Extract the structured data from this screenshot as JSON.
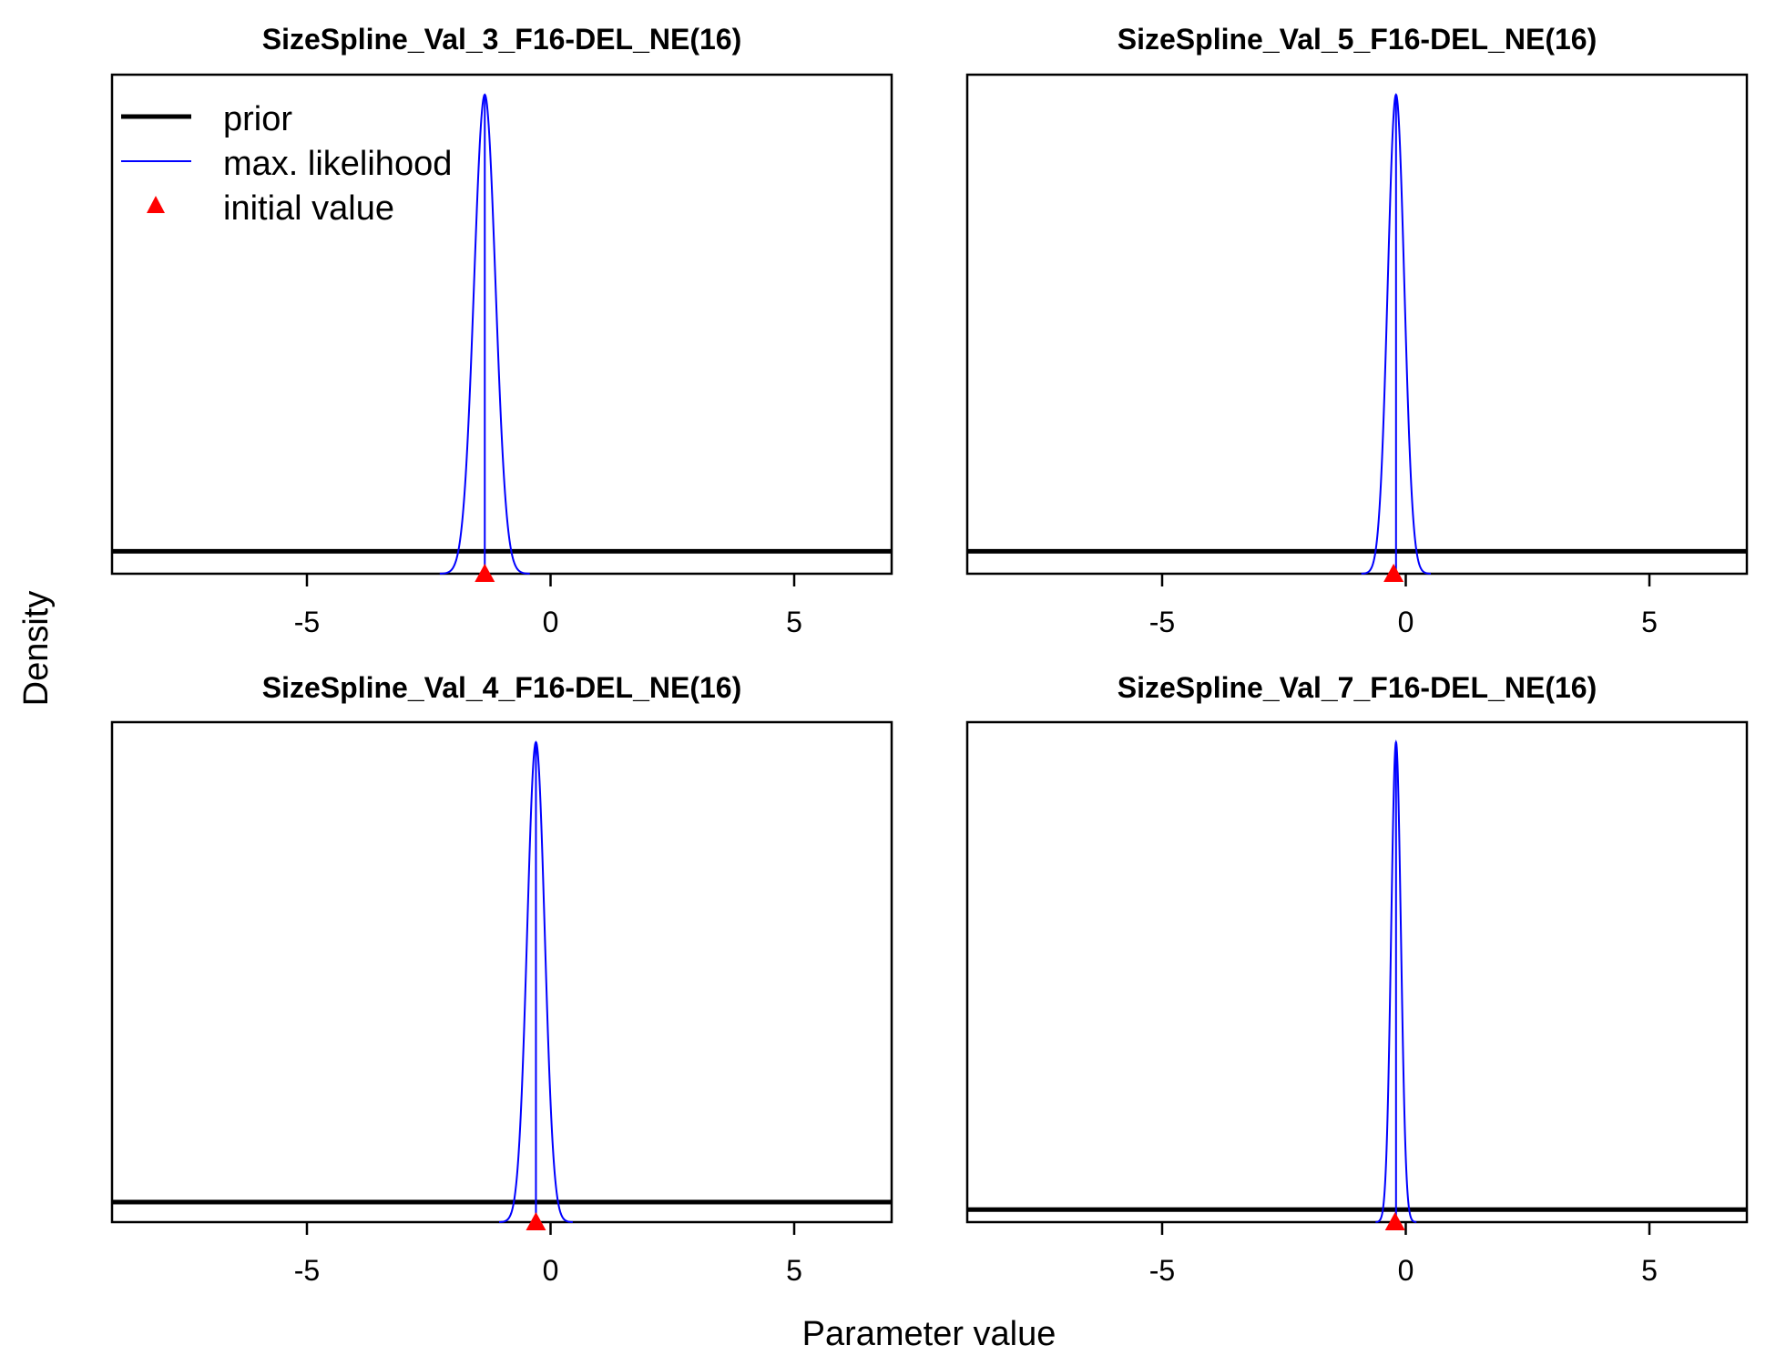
{
  "figure": {
    "ylabel": "Density",
    "xlabel": "Parameter value"
  },
  "legend": {
    "placement": "top-left of first panel",
    "entries": [
      {
        "label": "prior",
        "color": "#000000",
        "kind": "thick-line"
      },
      {
        "label": "max. likelihood",
        "color": "#0000ff",
        "kind": "thin-line"
      },
      {
        "label": "initial value",
        "color": "#ff0000",
        "kind": "triangle"
      }
    ]
  },
  "chart_data": [
    {
      "type": "line",
      "title": "SizeSpline_Val_3_F16-DEL_NE(16)",
      "xlim": [
        -9,
        7
      ],
      "xticks": [
        -5,
        0,
        5
      ],
      "prior_level": 0.045,
      "ml_mean": -1.35,
      "ml_sd": 0.22,
      "initial_value": -1.35
    },
    {
      "type": "line",
      "title": "SizeSpline_Val_5_F16-DEL_NE(16)",
      "xlim": [
        -9,
        7
      ],
      "xticks": [
        -5,
        0,
        5
      ],
      "prior_level": 0.045,
      "ml_mean": -0.2,
      "ml_sd": 0.17,
      "initial_value": -0.25
    },
    {
      "type": "line",
      "title": "SizeSpline_Val_4_F16-DEL_NE(16)",
      "xlim": [
        -9,
        7
      ],
      "xticks": [
        -5,
        0,
        5
      ],
      "prior_level": 0.04,
      "ml_mean": -0.3,
      "ml_sd": 0.18,
      "initial_value": -0.3
    },
    {
      "type": "line",
      "title": "SizeSpline_Val_7_F16-DEL_NE(16)",
      "xlim": [
        -9,
        7
      ],
      "xticks": [
        -5,
        0,
        5
      ],
      "prior_level": 0.025,
      "ml_mean": -0.2,
      "ml_sd": 0.1,
      "initial_value": -0.22
    }
  ]
}
